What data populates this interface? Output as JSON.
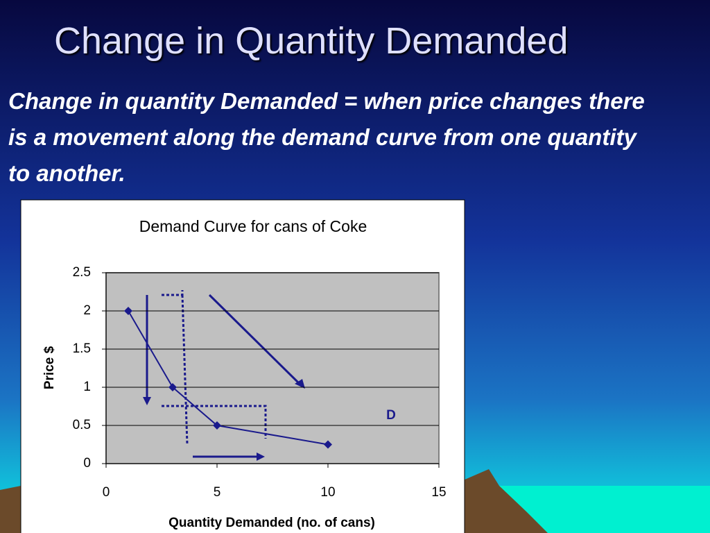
{
  "slide": {
    "title": "Change in Quantity Demanded",
    "text": "Change in quantity Demanded = when price changes there is a movement along the demand curve from one quantity to another."
  },
  "chart_data": {
    "type": "line",
    "title": "Demand Curve for cans of Coke",
    "x_label": "Quantity Demanded (no. of cans)",
    "y_label": "Price $",
    "x": [
      1,
      3,
      5,
      10
    ],
    "series": [
      {
        "name": "D",
        "color": "#1a1a8c",
        "values": [
          2,
          1,
          0.5,
          0.25
        ]
      }
    ],
    "xlim": [
      0,
      15
    ],
    "xticks": [
      0,
      5,
      10,
      15
    ],
    "ylim": [
      0,
      2.5
    ],
    "yticks": [
      0,
      0.5,
      1,
      1.5,
      2,
      2.5
    ],
    "grid": true
  }
}
